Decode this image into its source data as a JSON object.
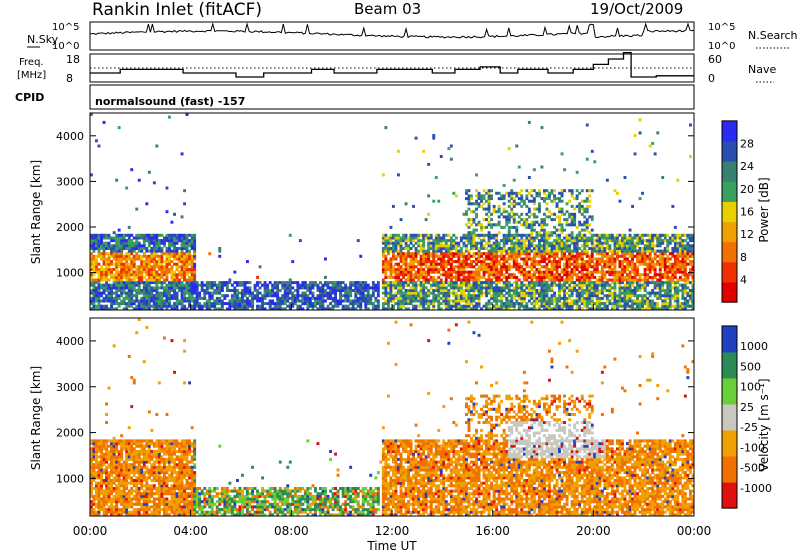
{
  "header": {
    "station": "Rankin Inlet (fitACF)",
    "beam": "Beam 03",
    "date": "19/Oct/2009"
  },
  "chart_data": [
    {
      "type": "line",
      "panel": "noise",
      "left_label": "N.Sky",
      "right_label": "N.Search",
      "left_ticks": [
        "10^5",
        "10^0"
      ],
      "right_ticks": [
        "10^5",
        "10^0"
      ]
    },
    {
      "type": "line",
      "panel": "frequency-nave",
      "left_label_line1": "Freq.",
      "left_label_line2": "[MHz]",
      "right_label": "Nave",
      "left_ticks": [
        "18",
        "8"
      ],
      "right_ticks": [
        "60",
        "0"
      ],
      "freq_mhz": [
        [
          0.0,
          11.2
        ],
        [
          1.2,
          11.2
        ],
        [
          1.2,
          12.5
        ],
        [
          3.7,
          12.5
        ],
        [
          3.7,
          11.2
        ],
        [
          5.8,
          11.2
        ],
        [
          5.8,
          9.8
        ],
        [
          6.9,
          9.8
        ],
        [
          6.9,
          11.2
        ],
        [
          8.8,
          11.2
        ],
        [
          8.8,
          12.5
        ],
        [
          9.7,
          12.5
        ],
        [
          9.7,
          11.2
        ],
        [
          11.4,
          11.2
        ],
        [
          11.4,
          12.5
        ],
        [
          13.6,
          12.5
        ],
        [
          13.6,
          11.2
        ],
        [
          14.5,
          11.2
        ],
        [
          14.5,
          12.5
        ],
        [
          15.5,
          12.5
        ],
        [
          15.5,
          13.4
        ],
        [
          16.3,
          13.4
        ],
        [
          16.3,
          11.2
        ],
        [
          17.0,
          11.2
        ],
        [
          17.0,
          12.5
        ],
        [
          18.2,
          12.5
        ],
        [
          18.2,
          11.2
        ],
        [
          19.2,
          11.2
        ],
        [
          19.2,
          12.5
        ],
        [
          20.0,
          12.5
        ],
        [
          20.0,
          14.3
        ],
        [
          20.6,
          14.3
        ],
        [
          20.6,
          16.2
        ],
        [
          21.2,
          16.2
        ],
        [
          21.2,
          18.5
        ],
        [
          21.5,
          18.5
        ],
        [
          21.5,
          9.8
        ],
        [
          22.5,
          9.8
        ],
        [
          22.5,
          10.2
        ],
        [
          24.0,
          10.2
        ]
      ],
      "ylim": [
        8,
        18
      ]
    },
    {
      "type": "label",
      "panel": "cpid",
      "left_label": "CPID",
      "text": "normalsound (fast) -157"
    },
    {
      "type": "heatmap",
      "panel": "power",
      "ylabel": "Slant Range [km]",
      "ylim": [
        180,
        4500
      ],
      "yticks": [
        1000,
        2000,
        3000,
        4000
      ],
      "colorbar_label": "Power [dB]",
      "colorbar_ticks": [
        "28",
        "24",
        "20",
        "16",
        "12",
        "8",
        "4"
      ],
      "colors": [
        "#2a2af0",
        "#2a4fb0",
        "#3a8070",
        "#3aa060",
        "#e8d000",
        "#f0a000",
        "#f07000",
        "#f03000",
        "#e00000"
      ]
    },
    {
      "type": "heatmap",
      "panel": "velocity",
      "ylabel": "Slant Range [km]",
      "xlabel": "Time UT",
      "ylim": [
        180,
        4500
      ],
      "yticks": [
        1000,
        2000,
        3000,
        4000
      ],
      "xticks": [
        "00:00",
        "04:00",
        "08:00",
        "12:00",
        "16:00",
        "20:00",
        "00:00"
      ],
      "colorbar_label": "Velocity [m s⁻¹]",
      "colorbar_ticks": [
        "1000",
        "500",
        "100",
        "25",
        "-25",
        "-100",
        "-500",
        "-1000"
      ],
      "colors": [
        "#2040c0",
        "#2e8b57",
        "#6acd3a",
        "#c8c8c0",
        "#f0a000",
        "#f07000",
        "#e01010"
      ]
    }
  ]
}
